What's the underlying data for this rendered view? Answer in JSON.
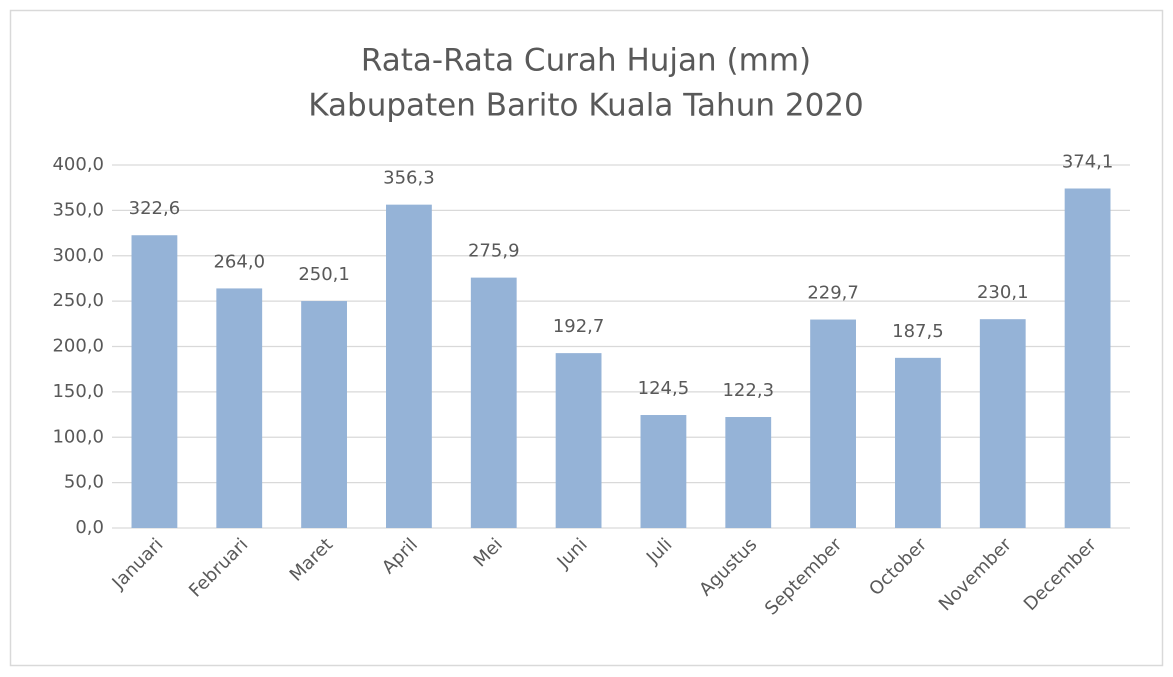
{
  "chart_data": {
    "type": "bar",
    "title": "Rata-Rata Curah Hujan (mm)",
    "subtitle": "Kabupaten Barito Kuala Tahun 2020",
    "categories": [
      "Januari",
      "Februari",
      "Maret",
      "April",
      "Mei",
      "Juni",
      "Juli",
      "Agustus",
      "September",
      "October",
      "November",
      "December"
    ],
    "values": [
      322.6,
      264.0,
      250.1,
      356.3,
      275.9,
      192.7,
      124.5,
      122.3,
      229.7,
      187.5,
      230.1,
      374.1
    ],
    "value_labels": [
      "322,6",
      "264,0",
      "250,1",
      "356,3",
      "275,9",
      "192,7",
      "124,5",
      "122,3",
      "229,7",
      "187,5",
      "230,1",
      "374,1"
    ],
    "color": "#95b3d7",
    "ylim": [
      0,
      400
    ],
    "yticks": [
      {
        "value": 0,
        "label": "0,0"
      },
      {
        "value": 50,
        "label": "50,0"
      },
      {
        "value": 100,
        "label": "100,0"
      },
      {
        "value": 150,
        "label": "150,0"
      },
      {
        "value": 200,
        "label": "200,0"
      },
      {
        "value": 250,
        "label": "250,0"
      },
      {
        "value": 300,
        "label": "300,0"
      },
      {
        "value": 350,
        "label": "350,0"
      },
      {
        "value": 400,
        "label": "400,0"
      }
    ],
    "grid": true
  }
}
